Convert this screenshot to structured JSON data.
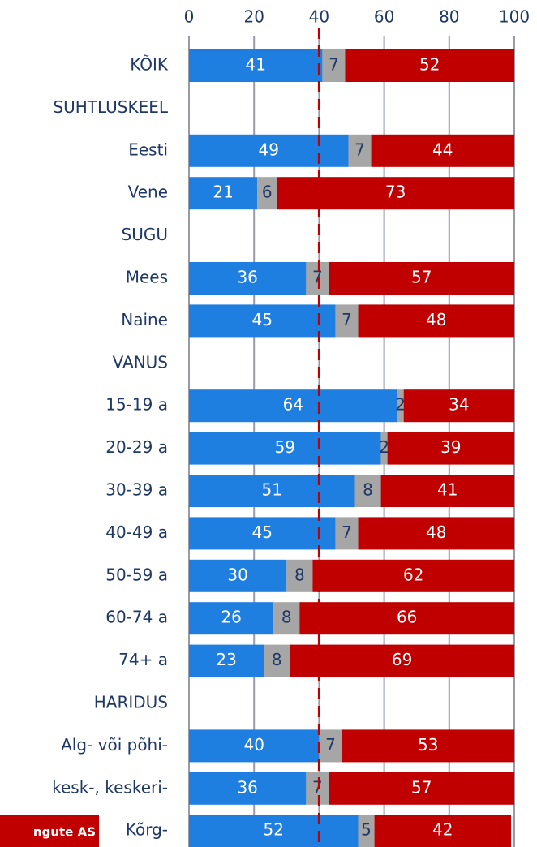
{
  "chart_data": {
    "type": "stacked-bar-horizontal",
    "categories": [
      "KÕIK",
      "SUHTLUSKEEL",
      "Eesti",
      "Vene",
      "SUGU",
      "Mees",
      "Naine",
      "VANUS",
      "15-19 a",
      "20-29 a",
      "30-39 a",
      "40-49 a",
      "50-59 a",
      "60-74 a",
      "74+ a",
      "HARIDUS",
      "Alg- või põhi-",
      "kesk-, keskeri-",
      "Kõrg-"
    ],
    "series": [
      {
        "color": "#1f7fe0",
        "values": [
          41,
          null,
          49,
          21,
          null,
          36,
          45,
          null,
          64,
          59,
          51,
          45,
          30,
          26,
          23,
          null,
          40,
          36,
          52
        ]
      },
      {
        "color": "#a6a6a6",
        "values": [
          7,
          null,
          7,
          6,
          null,
          7,
          7,
          null,
          2,
          2,
          8,
          7,
          8,
          8,
          8,
          null,
          7,
          7,
          5
        ]
      },
      {
        "color": "#c00000",
        "values": [
          52,
          null,
          44,
          73,
          null,
          57,
          48,
          null,
          34,
          39,
          41,
          48,
          62,
          66,
          69,
          null,
          53,
          57,
          42
        ]
      }
    ],
    "xlim": [
      0,
      100
    ],
    "xticks": [
      0,
      20,
      40,
      60,
      80,
      100
    ],
    "grid": true,
    "reference_line": {
      "value": 40,
      "color": "#c00000"
    },
    "logo": "ngute AS"
  }
}
